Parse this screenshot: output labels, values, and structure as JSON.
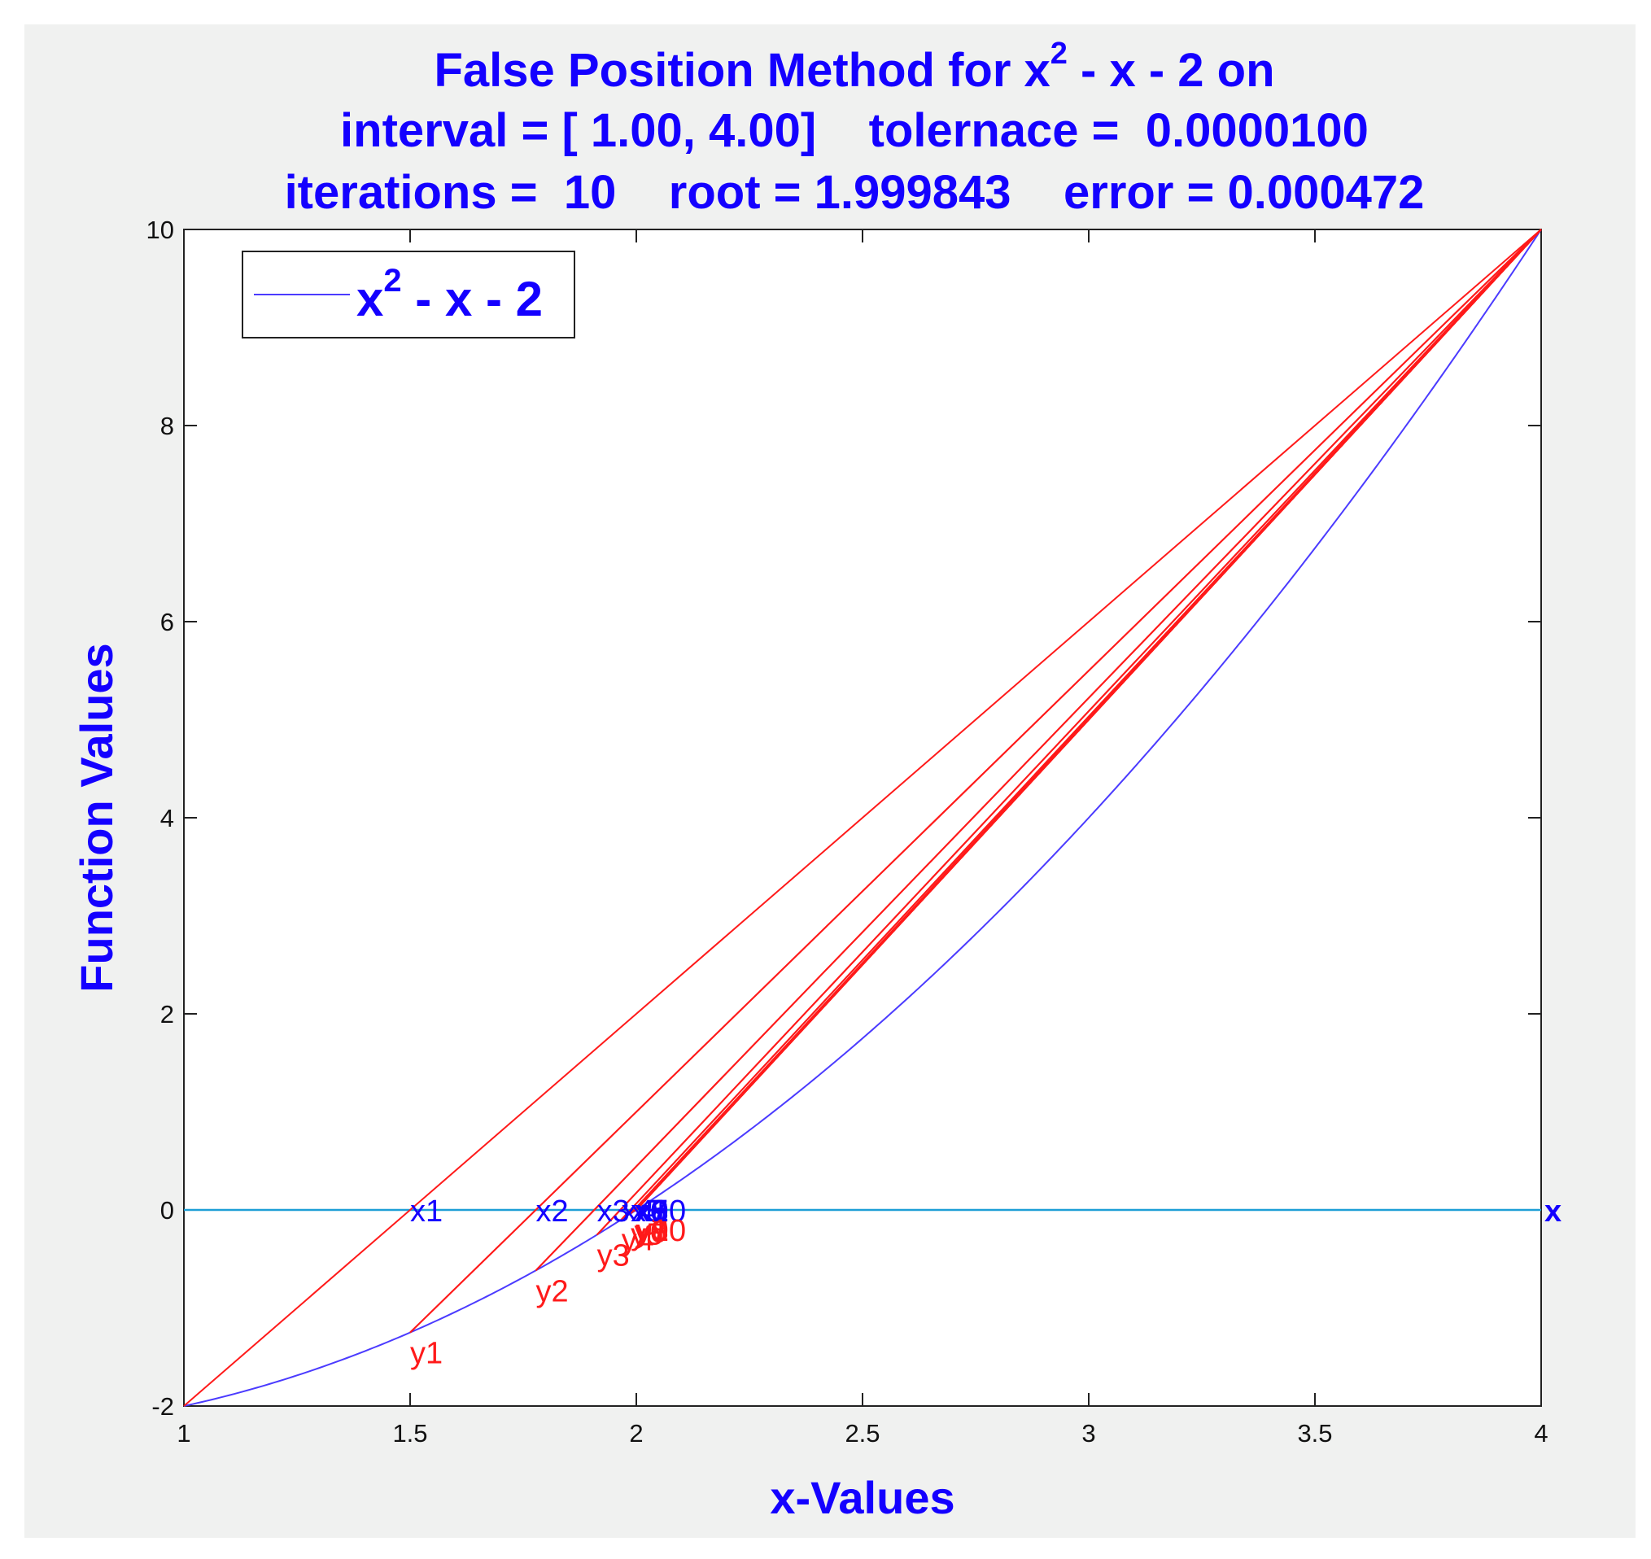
{
  "chart_data": {
    "type": "line",
    "title_lines": [
      "False Position Method for x^2 - x - 2 on",
      "interval = [ 1.00, 4.00]    tolernace =  0.0000100",
      "iterations =  10    root = 1.999843    error = 0.000472"
    ],
    "title_parts": {
      "line1_a": "False Position Method for x",
      "line1_sup": "2",
      "line1_b": " - x - 2 on"
    },
    "xlabel": "x-Values",
    "ylabel": "Function Values",
    "xlim": [
      1,
      4
    ],
    "ylim": [
      -2,
      10
    ],
    "xticks": [
      1,
      1.5,
      2,
      2.5,
      3,
      3.5,
      4
    ],
    "xtick_labels": [
      "1",
      "1.5",
      "2",
      "2.5",
      "3",
      "3.5",
      "4"
    ],
    "yticks": [
      -2,
      0,
      2,
      4,
      6,
      8,
      10
    ],
    "ytick_labels": [
      "-2",
      "0",
      "2",
      "4",
      "6",
      "8",
      "10"
    ],
    "grid": false,
    "legend": {
      "placement": "top-left",
      "entries": [
        {
          "text_base": "x",
          "text_sup": "2",
          "text_rest": " - x - 2"
        }
      ]
    },
    "function_curve": {
      "expression": "x^2 - x - 2",
      "color": "#4b3bff"
    },
    "zero_line": {
      "y": 0,
      "color": "#1e9fd6"
    },
    "secant_color": "#ff1a1a",
    "anchor_point": {
      "x": 4,
      "y": 10
    },
    "iterates": [
      {
        "x": 1.5,
        "y": -1.25
      },
      {
        "x": 1.7778,
        "y": -0.6173
      },
      {
        "x": 1.913,
        "y": -0.2533
      },
      {
        "x": 1.9672,
        "y": -0.0975
      },
      {
        "x": 1.9876,
        "y": -0.0367
      },
      {
        "x": 1.9954,
        "y": -0.0137
      },
      {
        "x": 1.9983,
        "y": -0.0051
      },
      {
        "x": 1.9994,
        "y": -0.0019
      },
      {
        "x": 1.9998,
        "y": -0.0007
      },
      {
        "x": 1.9998,
        "y": -0.0005
      }
    ],
    "x_labels": [
      "x1",
      "x2",
      "x3",
      "x4",
      "x5",
      "x6",
      "x7",
      "x8",
      "x9",
      "x10"
    ],
    "y_labels": [
      "y1",
      "y2",
      "y3",
      "y4",
      "y5",
      "y6",
      "y7",
      "y8",
      "y9",
      "y10"
    ],
    "end_marker_label": "x",
    "x_label_color": "#1400ff",
    "y_label_color": "#ff1a1a"
  }
}
